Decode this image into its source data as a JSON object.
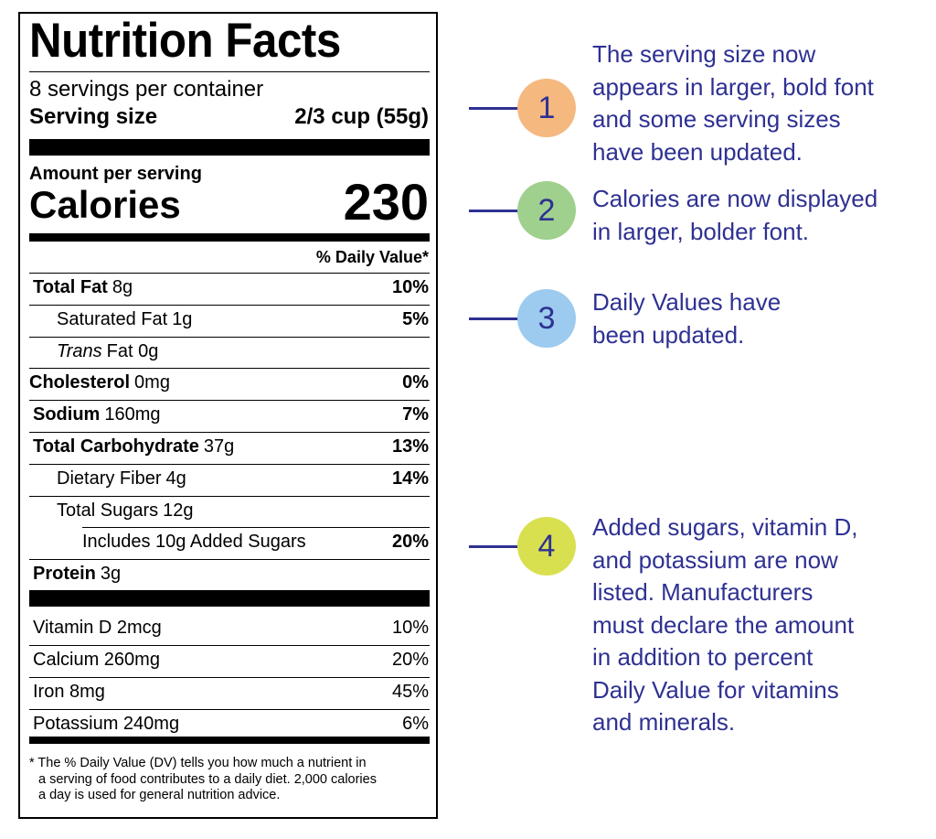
{
  "label": {
    "title": "Nutrition Facts",
    "servings": "8 servings per container",
    "serving_size_label": "Serving size",
    "serving_size_value": "2/3 cup (55g)",
    "amount_per_serving": "Amount per serving",
    "calories_label": "Calories",
    "calories_value": "230",
    "daily_value_header": "% Daily Value*",
    "nutrients": [
      {
        "name": "Total Fat",
        "amount": "8g",
        "dv": "10%"
      },
      {
        "name": "Saturated Fat",
        "amount": "1g",
        "dv": "5%"
      },
      {
        "name": "Trans",
        "amount": "Fat 0g"
      },
      {
        "name": "Cholesterol",
        "amount": "0mg",
        "dv": "0%"
      },
      {
        "name": "Sodium",
        "amount": "160mg",
        "dv": "7%"
      },
      {
        "name": "Total Carbohydrate",
        "amount": "37g",
        "dv": "13%"
      },
      {
        "name": "Dietary Fiber",
        "amount": "4g",
        "dv": "14%"
      },
      {
        "name": "Total Sugars",
        "amount": "12g"
      },
      {
        "name": "Includes 10g Added Sugars",
        "dv": "20%"
      },
      {
        "name": "Protein",
        "amount": "3g"
      }
    ],
    "vitamins": [
      {
        "name": "Vitamin D 2mcg",
        "dv": "10%"
      },
      {
        "name": "Calcium 260mg",
        "dv": "20%"
      },
      {
        "name": "Iron 8mg",
        "dv": "45%"
      },
      {
        "name": "Potassium 240mg",
        "dv": "6%"
      }
    ],
    "footnote": [
      "* The % Daily Value (DV) tells you how much a nutrient in",
      "a serving of food contributes to a daily diet. 2,000 calories",
      "a day is used for general nutrition advice."
    ]
  },
  "annotations": [
    {
      "number": "1",
      "lines": [
        "The serving size now",
        "appears in larger, bold font",
        "and some serving sizes",
        "have been updated."
      ]
    },
    {
      "number": "2",
      "lines": [
        "Calories are now displayed",
        "in larger, bolder font."
      ]
    },
    {
      "number": "3",
      "lines": [
        "Daily Values have",
        "been updated."
      ]
    },
    {
      "number": "4",
      "lines": [
        "Added sugars, vitamin D,",
        "and potassium are now",
        "listed. Manufacturers",
        "must declare the amount",
        "in addition to percent",
        "Daily Value for vitamins",
        "and minerals."
      ]
    }
  ]
}
